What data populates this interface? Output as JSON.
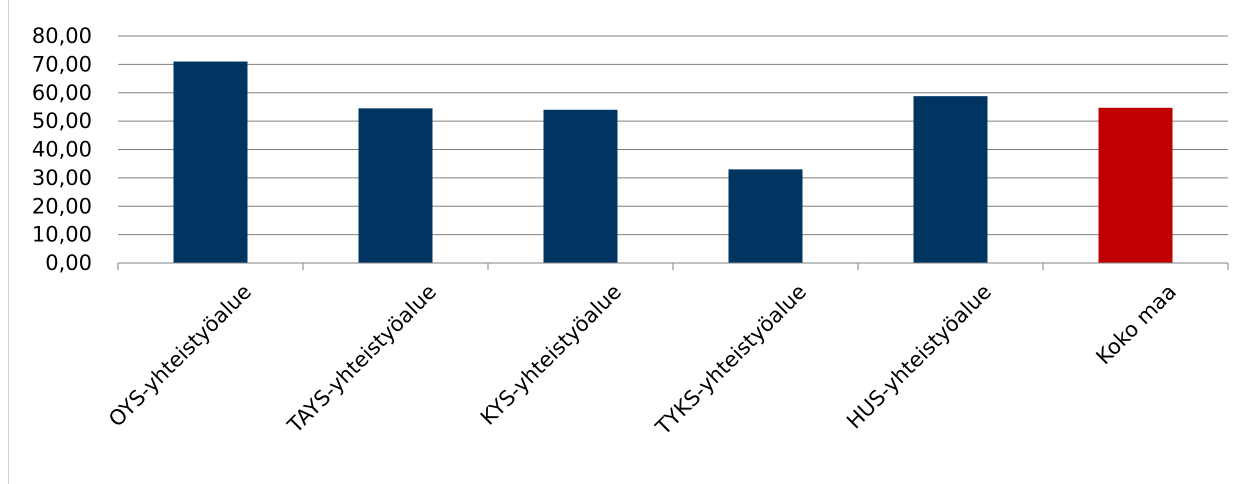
{
  "chart_data": {
    "type": "bar",
    "categories": [
      "OYS-yhteistyöalue",
      "TAYS-yhteistyöalue",
      "KYS-yhteistyöalue",
      "TYKS-yhteistyöalue",
      "HUS-yhteistyöalue",
      "Koko maa"
    ],
    "values": [
      71,
      54.5,
      54,
      33,
      58.8,
      54.7
    ],
    "ylim": [
      0,
      80
    ],
    "yticks": [
      0,
      10,
      20,
      30,
      40,
      50,
      60,
      70,
      80
    ],
    "ytick_labels": [
      "0,00",
      "10,00",
      "20,00",
      "30,00",
      "40,00",
      "50,00",
      "60,00",
      "70,00",
      "80,00"
    ],
    "grid": true,
    "colors": {
      "bar": "#003562",
      "highlight": "#c00000",
      "grid": "#808080"
    },
    "highlight_category": "Koko maa"
  }
}
